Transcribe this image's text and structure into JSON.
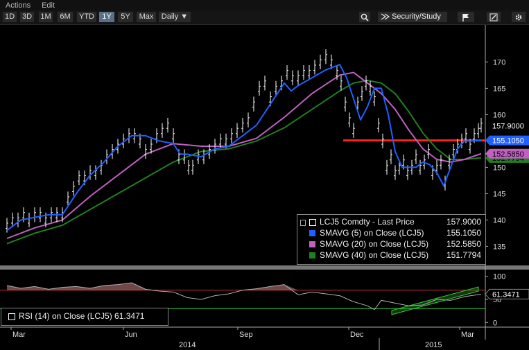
{
  "menu": {
    "actions": "Actions",
    "edit": "Edit"
  },
  "toolbar": {
    "periods": [
      "1D",
      "3D",
      "1M",
      "6M",
      "YTD",
      "1Y",
      "5Y",
      "Max"
    ],
    "active_period": "1Y",
    "frequency": "Daily ▼",
    "security_study": "Security/Study",
    "icons": [
      "magnifier-icon",
      "flag-icon",
      "edit-icon",
      "gear-icon"
    ]
  },
  "colors": {
    "price": "#ffffff",
    "sma5": "#2060ff",
    "sma20": "#c060c0",
    "sma40": "#208020",
    "hline": "#ff2020",
    "rsi": "#b0b0b0"
  },
  "legend": {
    "price": {
      "label": "LCJ5 Comdty - Last Price",
      "value": "157.9000"
    },
    "sma5": {
      "label": "SMAVG (5) on Close (LCJ5)",
      "value": "155.1050"
    },
    "sma20": {
      "label": "SMAVG (20) on Close (LCJ5)",
      "value": "152.5850"
    },
    "sma40": {
      "label": "SMAVG (40) on Close (LCJ5)",
      "value": "151.7794"
    }
  },
  "price_tags": {
    "price": "157.9000",
    "sma5": "155.1050",
    "sma20": "152.5850",
    "sma40": "151.7794"
  },
  "rsi_tag": "61.3471",
  "rsi_legend": "RSI (14) on Close (LCJ5) 61.3471",
  "chart_data": {
    "type": "line",
    "y_ticks": [
      135,
      140,
      145,
      150,
      155,
      160,
      165,
      170
    ],
    "ylim": [
      131.5,
      176.5
    ],
    "rsi_ticks": [
      0,
      50,
      100
    ],
    "rsi_ylim": [
      -10,
      110
    ],
    "x_months": [
      "Mar",
      "Jun",
      "Sep",
      "Dec",
      "Mar"
    ],
    "x_years": [
      "2014",
      "2015"
    ],
    "horizontal_line": 155.1,
    "rsi_levels": [
      70,
      30
    ],
    "series": [
      {
        "name": "LCJ5 Comdty - Last Price",
        "color_key": "price",
        "x": [
          0,
          8,
          16,
          24,
          32,
          40,
          48,
          56,
          64,
          72,
          80,
          88,
          96,
          104,
          112,
          120,
          128,
          136,
          144,
          152,
          160,
          168,
          176,
          184,
          192,
          200,
          208,
          216,
          224,
          232,
          240,
          248,
          256,
          262,
          268,
          276,
          284,
          292,
          300,
          308,
          316,
          324,
          332,
          340,
          348,
          356,
          364,
          372,
          380,
          388,
          396,
          404,
          412,
          420,
          428,
          436,
          444,
          452,
          460,
          468,
          476,
          482,
          488,
          494,
          500,
          506,
          512,
          518,
          524,
          530,
          536,
          542,
          548,
          554,
          560,
          566,
          572,
          578,
          584,
          590,
          596,
          602,
          608,
          614,
          620,
          626,
          632,
          638,
          644,
          650,
          656,
          662,
          668,
          674,
          680,
          684
        ],
        "values": [
          139,
          140,
          140,
          141,
          140,
          141,
          141,
          140,
          141,
          141,
          141,
          144,
          146,
          148,
          148,
          149,
          149,
          150,
          152,
          153,
          154,
          155,
          156,
          156,
          155,
          153,
          154,
          156,
          157,
          158,
          156,
          152,
          152,
          150,
          150,
          152,
          152,
          153,
          154,
          155,
          155,
          156,
          157,
          158,
          159,
          162,
          165,
          166,
          163,
          165,
          166,
          168,
          167,
          167,
          168,
          168,
          169,
          170,
          171,
          170,
          168,
          166,
          162,
          159,
          157,
          162,
          164,
          166,
          165,
          163,
          158,
          155,
          150,
          152,
          149,
          150,
          151,
          149,
          150,
          152,
          150,
          151,
          153,
          149,
          150,
          151,
          147,
          151,
          153,
          154,
          155,
          156,
          154,
          156,
          157,
          158
        ]
      },
      {
        "name": "SMAVG (5) on Close (LCJ5)",
        "color_key": "sma5",
        "x": [
          0,
          20,
          40,
          60,
          80,
          100,
          120,
          140,
          160,
          180,
          200,
          220,
          240,
          250,
          260,
          280,
          300,
          320,
          340,
          360,
          380,
          400,
          410,
          420,
          440,
          460,
          480,
          490,
          500,
          510,
          520,
          530,
          540,
          550,
          560,
          570,
          580,
          590,
          600,
          610,
          620,
          630,
          640,
          650,
          660,
          670,
          680,
          684
        ],
        "values": [
          138,
          140,
          140.5,
          141,
          141,
          145,
          148.5,
          151,
          154,
          156,
          156,
          155,
          154.5,
          152.5,
          152.5,
          152,
          153.5,
          154,
          156,
          158,
          162,
          166,
          164.5,
          165.5,
          167,
          168.5,
          169.5,
          167,
          163,
          159,
          161.5,
          165,
          165,
          160,
          153,
          150,
          150,
          150,
          151,
          150.5,
          149,
          146.5,
          150,
          153.5,
          155,
          155,
          155.1,
          155.1
        ]
      },
      {
        "name": "SMAVG (20) on Close (LCJ5)",
        "color_key": "sma20",
        "x": [
          0,
          40,
          80,
          120,
          160,
          200,
          240,
          280,
          320,
          360,
          400,
          440,
          480,
          500,
          520,
          540,
          560,
          580,
          600,
          620,
          640,
          660,
          684
        ],
        "values": [
          136.5,
          138.5,
          140,
          144.5,
          148.5,
          152.5,
          154.5,
          154,
          154,
          155.5,
          159.5,
          164,
          167.5,
          168,
          166,
          164,
          161,
          157,
          153.5,
          151.5,
          151,
          151.5,
          152.6
        ]
      },
      {
        "name": "SMAVG (40) on Close (LCJ5)",
        "color_key": "sma40",
        "x": [
          0,
          40,
          80,
          120,
          160,
          200,
          240,
          280,
          320,
          360,
          400,
          440,
          480,
          500,
          520,
          540,
          560,
          580,
          600,
          620,
          640,
          660,
          684
        ],
        "values": [
          135.5,
          137.5,
          139,
          142,
          145,
          148,
          151,
          153,
          153.5,
          155,
          157.5,
          161,
          164.5,
          166,
          166.5,
          166,
          164,
          160.5,
          156.5,
          153.5,
          151.5,
          151.5,
          151.8
        ]
      }
    ],
    "rsi_series": {
      "name": "RSI (14) on Close (LCJ5)",
      "x": [
        0,
        20,
        40,
        60,
        80,
        100,
        120,
        140,
        160,
        180,
        200,
        220,
        240,
        260,
        280,
        300,
        320,
        340,
        360,
        380,
        400,
        420,
        440,
        460,
        480,
        500,
        520,
        530,
        540,
        560,
        580,
        600,
        620,
        640,
        660,
        684
      ],
      "values": [
        80,
        74,
        78,
        72,
        76,
        78,
        74,
        80,
        82,
        86,
        72,
        68,
        66,
        54,
        50,
        58,
        62,
        70,
        73,
        78,
        82,
        60,
        66,
        62,
        58,
        45,
        36,
        28,
        48,
        42,
        36,
        38,
        50,
        48,
        56,
        61.3
      ]
    }
  }
}
